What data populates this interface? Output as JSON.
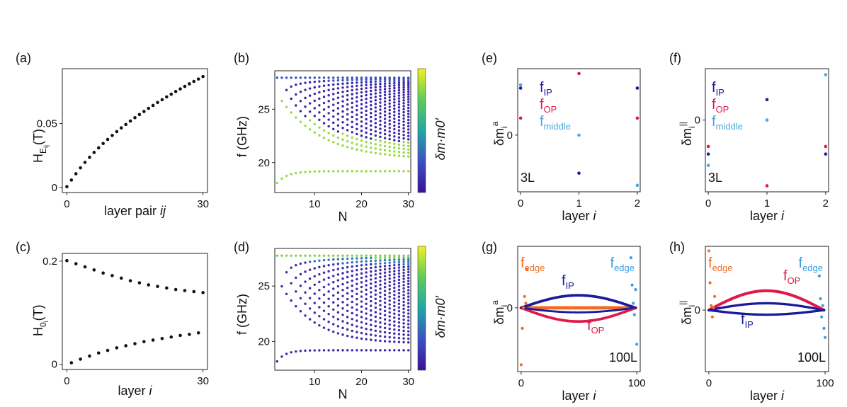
{
  "panels": {
    "a": {
      "letter": "(a)",
      "type": "scatter",
      "xlabel": "layer pair ",
      "xlabel_italic": "ij",
      "ylabel_main": "H",
      "ylabel_sub": "E",
      "ylabel_subsub": "ij",
      "ylabel_unit": "(T)",
      "xticks": [
        "0",
        "30"
      ],
      "yticks": [
        "0",
        "0.05"
      ],
      "xlim": [
        -1,
        31
      ],
      "ylim": [
        -0.004,
        0.093
      ],
      "color": "#111111"
    },
    "b": {
      "letter": "(b)",
      "type": "scatter",
      "xlabel": "N",
      "ylabel": "f (GHz)",
      "xticks": [
        "10",
        "20",
        "30"
      ],
      "yticks": [
        "20",
        "25"
      ],
      "xlim": [
        1.5,
        30.5
      ],
      "ylim": [
        17.2,
        28.6
      ],
      "colorbar_label": "δm·m0′"
    },
    "c": {
      "letter": "(c)",
      "type": "scatter",
      "xlabel": "layer ",
      "xlabel_italic": "i",
      "ylabel_main": "H",
      "ylabel_sub": "0",
      "ylabel_subsub": "i",
      "ylabel_unit": "(T)",
      "xticks": [
        "0",
        "30"
      ],
      "yticks": [
        "0",
        "0.2"
      ],
      "xlim": [
        -1,
        31
      ],
      "ylim": [
        -0.01,
        0.215
      ],
      "color": "#111111"
    },
    "d": {
      "letter": "(d)",
      "type": "scatter",
      "xlabel": "N",
      "ylabel": "f (GHz)",
      "xticks": [
        "10",
        "20",
        "30"
      ],
      "yticks": [
        "20",
        "25"
      ],
      "xlim": [
        1.5,
        30.5
      ],
      "ylim": [
        17.4,
        28.4
      ],
      "colorbar_label": "δm·m0′"
    },
    "e": {
      "letter": "(e)",
      "type": "scatter",
      "xlabel": "layer ",
      "xlabel_italic": "i",
      "ylabel_main": "δm",
      "ylabel_sub": "i",
      "ylabel_sup": "a",
      "xticks": [
        "0",
        "1",
        "2"
      ],
      "yticks": [
        "0"
      ],
      "annotation": "3L",
      "legend": {
        "IP": {
          "main": "f",
          "sub": "IP"
        },
        "OP": {
          "main": "f",
          "sub": "OP"
        },
        "middle": {
          "main": "f",
          "sub": "middle"
        }
      }
    },
    "f": {
      "letter": "(f)",
      "type": "scatter",
      "xlabel": "layer ",
      "xlabel_italic": "i",
      "ylabel_main": "δm",
      "ylabel_sub": "i",
      "ylabel_sup": "||",
      "xticks": [
        "0",
        "1",
        "2"
      ],
      "yticks": [
        "0"
      ],
      "annotation": "3L",
      "legend": {
        "IP": {
          "main": "f",
          "sub": "IP"
        },
        "OP": {
          "main": "f",
          "sub": "OP"
        },
        "middle": {
          "main": "f",
          "sub": "middle"
        }
      }
    },
    "g": {
      "letter": "(g)",
      "type": "scatter",
      "xlabel": "layer ",
      "xlabel_italic": "i",
      "ylabel_main": "δm",
      "ylabel_sub": "i",
      "ylabel_sup": "a",
      "xticks": [
        "0",
        "100"
      ],
      "yticks": [
        "0"
      ],
      "annotation": "100L",
      "labels": {
        "edge_left": {
          "main": "f",
          "sub": "edge"
        },
        "edge_right": {
          "main": "f",
          "sub": "edge"
        },
        "IP": {
          "main": "f",
          "sub": "IP"
        },
        "OP": {
          "main": "f",
          "sub": "OP"
        }
      }
    },
    "h": {
      "letter": "(h)",
      "type": "scatter",
      "xlabel": "layer ",
      "xlabel_italic": "i",
      "ylabel_main": "δm",
      "ylabel_sub": "i",
      "ylabel_sup": "||",
      "xticks": [
        "0",
        "100"
      ],
      "yticks": [
        "0"
      ],
      "annotation": "100L",
      "labels": {
        "edge_left": {
          "main": "f",
          "sub": "edge"
        },
        "edge_right": {
          "main": "f",
          "sub": "edge"
        },
        "OP": {
          "main": "f",
          "sub": "OP"
        },
        "IP": {
          "main": "f",
          "sub": "IP"
        }
      }
    }
  },
  "colors": {
    "IP": "#1a1a9c",
    "OP": "#e0194b",
    "middle": "#4aa8e0",
    "edge": "#f26b21",
    "edge_right": "#3a9ee0"
  },
  "chart_data": [
    {
      "panel": "a",
      "type": "scatter",
      "x": [
        0,
        1,
        2,
        3,
        4,
        5,
        6,
        7,
        8,
        9,
        10,
        11,
        12,
        13,
        14,
        15,
        16,
        17,
        18,
        19,
        20,
        21,
        22,
        23,
        24,
        25,
        26,
        27,
        28,
        29,
        30
      ],
      "y": [
        0.0006,
        0.0058,
        0.0107,
        0.0153,
        0.0196,
        0.0236,
        0.0274,
        0.031,
        0.0344,
        0.0376,
        0.0407,
        0.0437,
        0.0466,
        0.0493,
        0.052,
        0.0546,
        0.0571,
        0.0595,
        0.0619,
        0.0642,
        0.0665,
        0.0687,
        0.0709,
        0.073,
        0.0751,
        0.0771,
        0.0791,
        0.0811,
        0.083,
        0.0849,
        0.0868
      ]
    },
    {
      "panel": "c",
      "type": "scatter",
      "series": [
        {
          "x": [
            0,
            2,
            4,
            6,
            8,
            10,
            12,
            14,
            16,
            18,
            20,
            22,
            24,
            26,
            28,
            30
          ],
          "y": [
            0.201,
            0.195,
            0.189,
            0.183,
            0.177,
            0.172,
            0.167,
            0.162,
            0.158,
            0.154,
            0.151,
            0.148,
            0.145,
            0.143,
            0.141,
            0.139
          ]
        },
        {
          "x": [
            1,
            3,
            5,
            7,
            9,
            11,
            13,
            15,
            17,
            19,
            21,
            23,
            25,
            27,
            29
          ],
          "y": [
            0.003,
            0.01,
            0.016,
            0.022,
            0.027,
            0.032,
            0.036,
            0.04,
            0.044,
            0.047,
            0.05,
            0.053,
            0.056,
            0.058,
            0.061
          ]
        }
      ]
    },
    {
      "panel": "b",
      "type": "scatter",
      "x_range": [
        2,
        30
      ],
      "f_max": 27.95,
      "f_min_limit": 20.0,
      "branch_low": 19.2,
      "colorscale": "viridis"
    },
    {
      "panel": "d",
      "type": "scatter",
      "x_range": [
        2,
        30
      ],
      "f_max": 27.75,
      "f_min_limit": 19.2,
      "colorscale": "viridis"
    },
    {
      "panel": "e",
      "type": "scatter",
      "series": [
        {
          "name": "IP",
          "x": [
            0,
            1,
            2
          ],
          "y": [
            0.58,
            -0.47,
            0.58
          ]
        },
        {
          "name": "OP",
          "x": [
            0,
            1,
            2
          ],
          "y": [
            0.21,
            0.76,
            0.21
          ]
        },
        {
          "name": "middle",
          "x": [
            0,
            1,
            2
          ],
          "y": [
            0.62,
            0.0,
            -0.62
          ]
        }
      ],
      "ylim": [
        -0.7,
        0.82
      ]
    },
    {
      "panel": "f",
      "type": "scatter",
      "series": [
        {
          "name": "IP",
          "x": [
            0,
            1,
            2
          ],
          "y": [
            -0.45,
            0.27,
            -0.45
          ]
        },
        {
          "name": "OP",
          "x": [
            0,
            1,
            2
          ],
          "y": [
            -0.35,
            -0.87,
            -0.35
          ]
        },
        {
          "name": "middle",
          "x": [
            0,
            1,
            2
          ],
          "y": [
            -0.6,
            0.0,
            0.6
          ]
        }
      ],
      "ylim": [
        -0.95,
        0.68
      ]
    },
    {
      "panel": "g",
      "type": "scatter",
      "ylim": [
        -0.28,
        0.27
      ],
      "IP_amp": 0.055,
      "OP_amp": -0.06,
      "edge_left": {
        "x": [
          0,
          1,
          2,
          3,
          4,
          5
        ],
        "y": [
          -0.25,
          -0.09,
          0.0,
          0.05,
          0.02,
          0.17
        ]
      },
      "edge_right": {
        "x": [
          95,
          96,
          97,
          98,
          99,
          100
        ],
        "y": [
          0.22,
          0.1,
          0.02,
          -0.03,
          0.08,
          -0.16
        ]
      }
    },
    {
      "panel": "h",
      "type": "scatter",
      "ylim": [
        -0.27,
        0.28
      ],
      "OP_amp": 0.085,
      "IP_amp": -0.06,
      "IP_amp2": 0.03,
      "edge_left": {
        "x": [
          0,
          1,
          2,
          3,
          4,
          5
        ],
        "y": [
          0.26,
          0.12,
          0.02,
          -0.03,
          0.01,
          0.06
        ]
      },
      "edge_right": {
        "x": [
          95,
          96,
          97,
          98,
          99,
          100
        ],
        "y": [
          0.15,
          0.05,
          -0.03,
          0.02,
          -0.08,
          -0.12
        ]
      }
    }
  ]
}
